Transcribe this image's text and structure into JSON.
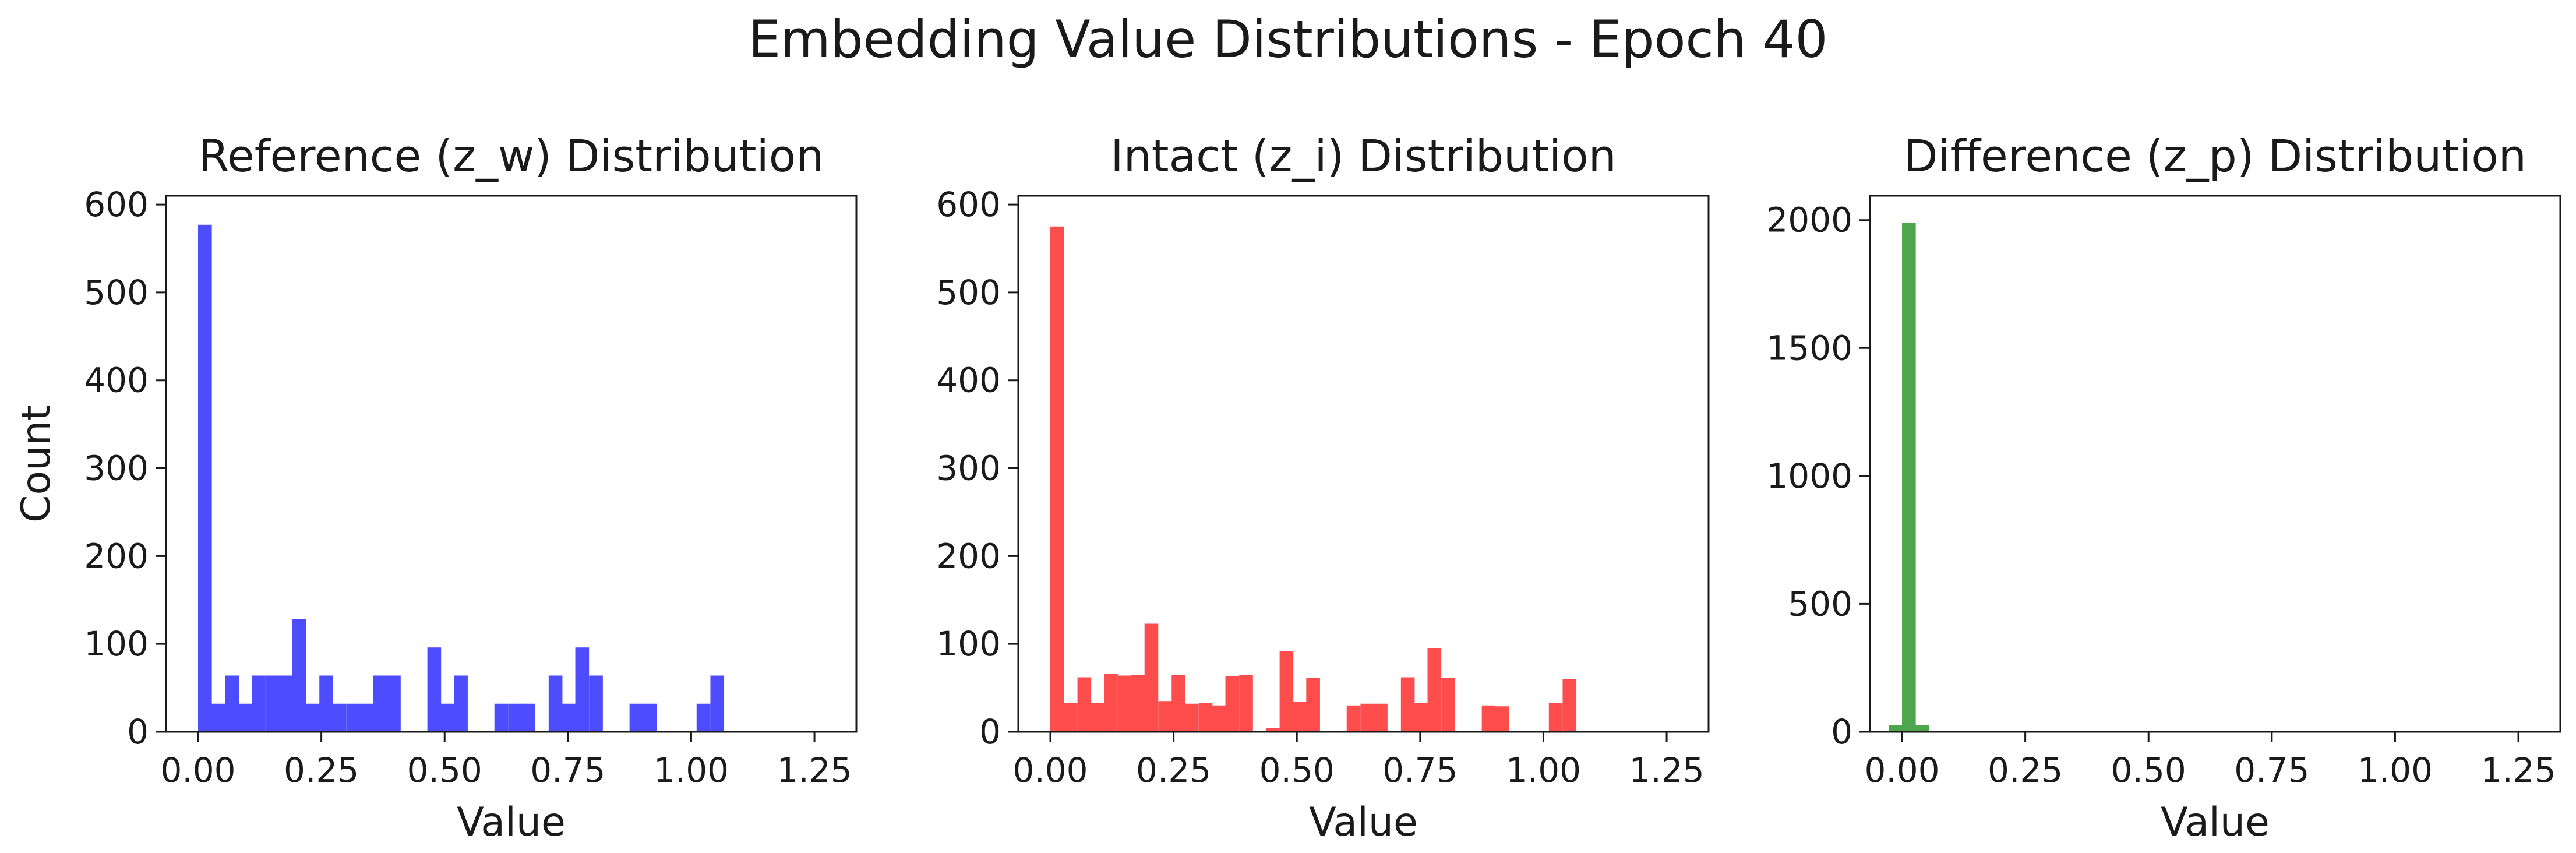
{
  "figure": {
    "title": "Embedding Value Distributions - Epoch 40"
  },
  "chart_data": [
    {
      "type": "bar",
      "title": "Reference (z_w) Distribution",
      "xlabel": "Value",
      "ylabel": "Count",
      "color": "#4d4dff",
      "xlim": [
        -0.065,
        1.335
      ],
      "ylim": [
        0,
        610
      ],
      "xticks": [
        "0.00",
        "0.25",
        "0.50",
        "0.75",
        "1.00",
        "1.25"
      ],
      "xtick_values": [
        0,
        0.25,
        0.5,
        0.75,
        1.0,
        1.25
      ],
      "yticks": [
        "0",
        "100",
        "200",
        "300",
        "400",
        "500",
        "600"
      ],
      "ytick_values": [
        0,
        100,
        200,
        300,
        400,
        500,
        600
      ],
      "bin_width": 0.0273,
      "bins": [
        {
          "x": 0.0,
          "count": 577
        },
        {
          "x": 0.027,
          "count": 32
        },
        {
          "x": 0.055,
          "count": 64
        },
        {
          "x": 0.082,
          "count": 32
        },
        {
          "x": 0.109,
          "count": 64
        },
        {
          "x": 0.137,
          "count": 64
        },
        {
          "x": 0.164,
          "count": 64
        },
        {
          "x": 0.191,
          "count": 128
        },
        {
          "x": 0.219,
          "count": 32
        },
        {
          "x": 0.246,
          "count": 64
        },
        {
          "x": 0.273,
          "count": 32
        },
        {
          "x": 0.301,
          "count": 32
        },
        {
          "x": 0.328,
          "count": 32
        },
        {
          "x": 0.355,
          "count": 64
        },
        {
          "x": 0.383,
          "count": 64
        },
        {
          "x": 0.41,
          "count": 0
        },
        {
          "x": 0.437,
          "count": 0
        },
        {
          "x": 0.465,
          "count": 96
        },
        {
          "x": 0.492,
          "count": 32
        },
        {
          "x": 0.519,
          "count": 64
        },
        {
          "x": 0.547,
          "count": 0
        },
        {
          "x": 0.574,
          "count": 0
        },
        {
          "x": 0.601,
          "count": 32
        },
        {
          "x": 0.629,
          "count": 32
        },
        {
          "x": 0.656,
          "count": 32
        },
        {
          "x": 0.683,
          "count": 0
        },
        {
          "x": 0.711,
          "count": 64
        },
        {
          "x": 0.738,
          "count": 32
        },
        {
          "x": 0.765,
          "count": 96
        },
        {
          "x": 0.793,
          "count": 64
        },
        {
          "x": 0.82,
          "count": 0
        },
        {
          "x": 0.847,
          "count": 0
        },
        {
          "x": 0.875,
          "count": 32
        },
        {
          "x": 0.902,
          "count": 32
        },
        {
          "x": 0.929,
          "count": 0
        },
        {
          "x": 0.957,
          "count": 0
        },
        {
          "x": 0.984,
          "count": 0
        },
        {
          "x": 1.011,
          "count": 32
        },
        {
          "x": 1.039,
          "count": 64
        }
      ]
    },
    {
      "type": "bar",
      "title": "Intact (z_i) Distribution",
      "xlabel": "Value",
      "ylabel": "",
      "color": "#ff4d4d",
      "xlim": [
        -0.065,
        1.335
      ],
      "ylim": [
        0,
        610
      ],
      "xticks": [
        "0.00",
        "0.25",
        "0.50",
        "0.75",
        "1.00",
        "1.25"
      ],
      "xtick_values": [
        0,
        0.25,
        0.5,
        0.75,
        1.0,
        1.25
      ],
      "yticks": [
        "0",
        "100",
        "200",
        "300",
        "400",
        "500",
        "600"
      ],
      "ytick_values": [
        0,
        100,
        200,
        300,
        400,
        500,
        600
      ],
      "bin_width": 0.0273,
      "bins": [
        {
          "x": 0.0,
          "count": 575
        },
        {
          "x": 0.027,
          "count": 33
        },
        {
          "x": 0.055,
          "count": 62
        },
        {
          "x": 0.082,
          "count": 33
        },
        {
          "x": 0.109,
          "count": 66
        },
        {
          "x": 0.137,
          "count": 64
        },
        {
          "x": 0.164,
          "count": 65
        },
        {
          "x": 0.191,
          "count": 123
        },
        {
          "x": 0.219,
          "count": 35
        },
        {
          "x": 0.246,
          "count": 65
        },
        {
          "x": 0.273,
          "count": 32
        },
        {
          "x": 0.301,
          "count": 33
        },
        {
          "x": 0.328,
          "count": 30
        },
        {
          "x": 0.355,
          "count": 63
        },
        {
          "x": 0.383,
          "count": 65
        },
        {
          "x": 0.41,
          "count": 0
        },
        {
          "x": 0.437,
          "count": 4
        },
        {
          "x": 0.465,
          "count": 92
        },
        {
          "x": 0.492,
          "count": 34
        },
        {
          "x": 0.519,
          "count": 61
        },
        {
          "x": 0.547,
          "count": 0
        },
        {
          "x": 0.574,
          "count": 0
        },
        {
          "x": 0.601,
          "count": 30
        },
        {
          "x": 0.629,
          "count": 32
        },
        {
          "x": 0.656,
          "count": 32
        },
        {
          "x": 0.683,
          "count": 0
        },
        {
          "x": 0.711,
          "count": 62
        },
        {
          "x": 0.738,
          "count": 33
        },
        {
          "x": 0.765,
          "count": 95
        },
        {
          "x": 0.793,
          "count": 61
        },
        {
          "x": 0.82,
          "count": 0
        },
        {
          "x": 0.847,
          "count": 0
        },
        {
          "x": 0.875,
          "count": 30
        },
        {
          "x": 0.902,
          "count": 29
        },
        {
          "x": 0.929,
          "count": 0
        },
        {
          "x": 0.957,
          "count": 0
        },
        {
          "x": 0.984,
          "count": 0
        },
        {
          "x": 1.011,
          "count": 33
        },
        {
          "x": 1.039,
          "count": 60
        }
      ]
    },
    {
      "type": "bar",
      "title": "Difference (z_p) Distribution",
      "xlabel": "Value",
      "ylabel": "",
      "color": "#4da64d",
      "xlim": [
        -0.065,
        1.335
      ],
      "ylim": [
        0,
        2095
      ],
      "xticks": [
        "0.00",
        "0.25",
        "0.50",
        "0.75",
        "1.00",
        "1.25"
      ],
      "xtick_values": [
        0,
        0.25,
        0.5,
        0.75,
        1.0,
        1.25
      ],
      "yticks": [
        "0",
        "500",
        "1000",
        "1500",
        "2000"
      ],
      "ytick_values": [
        0,
        500,
        1000,
        1500,
        2000
      ],
      "bin_width": 0.0273,
      "bins": [
        {
          "x": -0.027,
          "count": 25
        },
        {
          "x": 0.0,
          "count": 1990
        },
        {
          "x": 0.027,
          "count": 25
        }
      ]
    }
  ]
}
